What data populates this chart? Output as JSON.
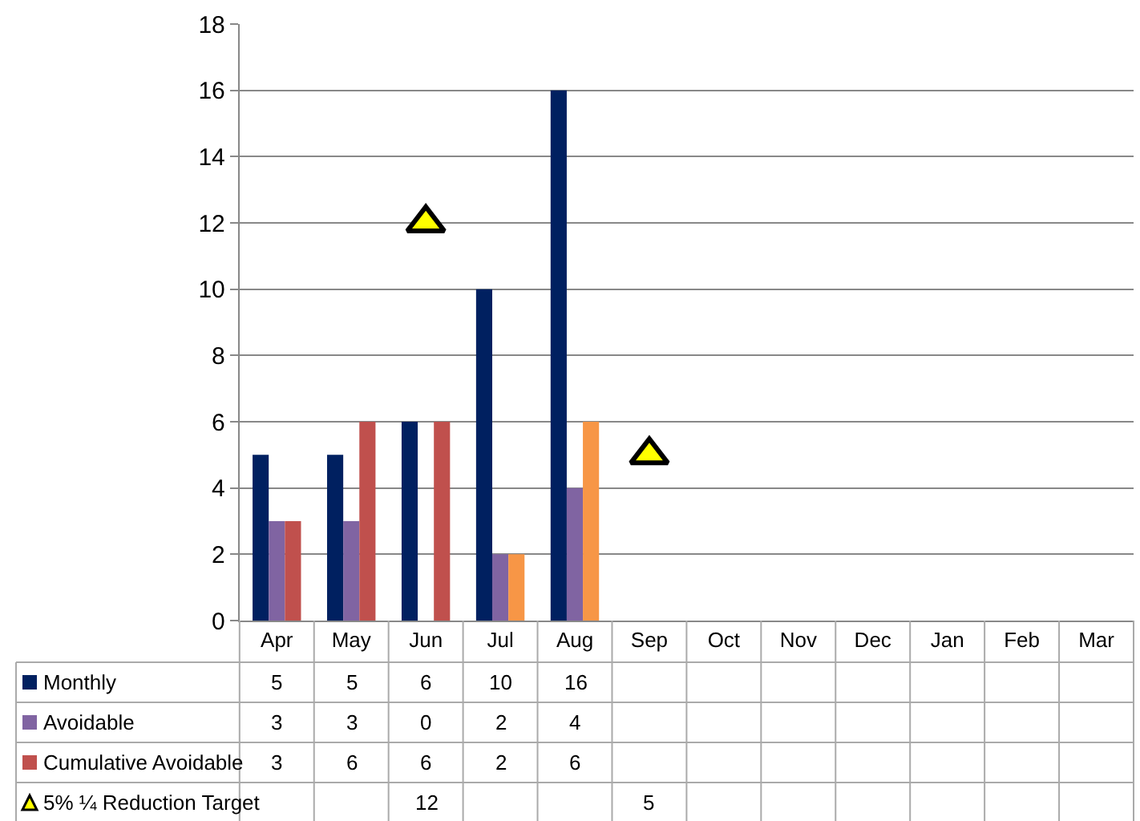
{
  "chart_data": {
    "type": "bar",
    "categories": [
      "Apr",
      "May",
      "Jun",
      "Jul",
      "Aug",
      "Sep",
      "Oct",
      "Nov",
      "Dec",
      "Jan",
      "Feb",
      "Mar"
    ],
    "series": [
      {
        "name": "Monthly",
        "color": "#002060",
        "values": [
          5,
          5,
          6,
          10,
          16,
          null,
          null,
          null,
          null,
          null,
          null,
          null
        ]
      },
      {
        "name": "Avoidable",
        "color": "#8064a2",
        "values": [
          3,
          3,
          0,
          2,
          4,
          null,
          null,
          null,
          null,
          null,
          null,
          null
        ]
      },
      {
        "name": "Cumulative Avoidable",
        "color": "#c0504d",
        "colors": [
          "#c0504d",
          "#c0504d",
          "#c0504d",
          "#f79646",
          "#f79646",
          null,
          null,
          null,
          null,
          null,
          null,
          null
        ],
        "values": [
          3,
          6,
          6,
          2,
          6,
          null,
          null,
          null,
          null,
          null,
          null,
          null
        ]
      },
      {
        "name": "5% ¼ Reduction Target",
        "type": "scatter",
        "color": "#ffff00",
        "marker": "triangle",
        "values": [
          null,
          null,
          12,
          null,
          null,
          5,
          null,
          null,
          null,
          null,
          null,
          null
        ]
      }
    ],
    "ylim": [
      0,
      18
    ],
    "yticks": [
      0,
      2,
      4,
      6,
      8,
      10,
      12,
      14,
      16,
      18
    ],
    "grid": "y",
    "data_labels": true,
    "legend": "bottom left"
  }
}
